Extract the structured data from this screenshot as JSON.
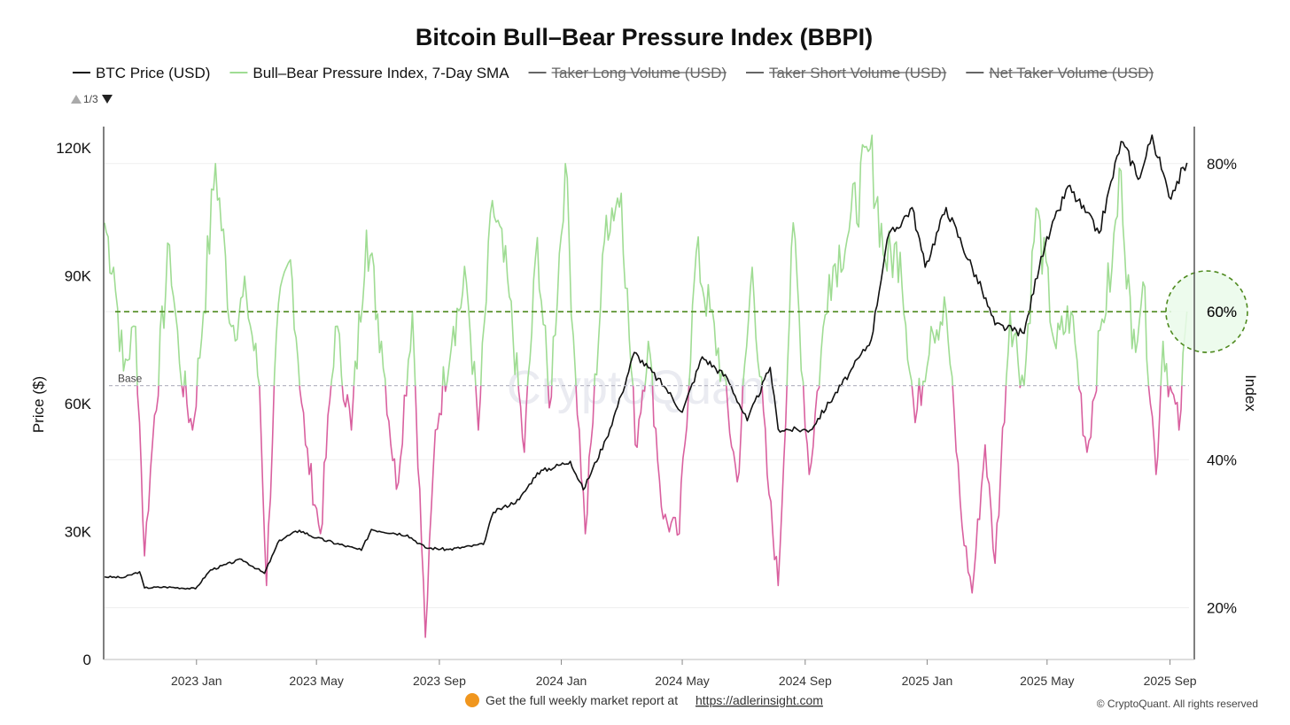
{
  "chart_data": {
    "type": "line",
    "title": "Bitcoin Bull–Bear Pressure Index (BBPI)",
    "legend": [
      {
        "label": "BTC Price (USD)",
        "color": "#111111",
        "active": true
      },
      {
        "label": "Bull–Bear Pressure Index, 7-Day SMA",
        "color": "#9fdc93",
        "active": true
      },
      {
        "label": "Taker Long Volume (USD)",
        "color": "#666666",
        "active": false
      },
      {
        "label": "Taker Short Volume (USD)",
        "color": "#666666",
        "active": false
      },
      {
        "label": "Net Taker Volume (USD)",
        "color": "#666666",
        "active": false
      }
    ],
    "legend_page": "1/3",
    "ylabel_left": "Price ($)",
    "ylabel_right": "Index",
    "y_left_range": [
      0,
      125000
    ],
    "y_left_ticks": [
      {
        "value": 0,
        "label": "0"
      },
      {
        "value": 30000,
        "label": "30K"
      },
      {
        "value": 60000,
        "label": "60K"
      },
      {
        "value": 90000,
        "label": "90K"
      },
      {
        "value": 120000,
        "label": "120K"
      }
    ],
    "y_right_range": [
      13,
      85
    ],
    "y_right_ticks": [
      {
        "value": 20,
        "label": "20%"
      },
      {
        "value": 40,
        "label": "40%"
      },
      {
        "value": 60,
        "label": "60%"
      },
      {
        "value": 80,
        "label": "80%"
      }
    ],
    "x_range": [
      "2022-10-01",
      "2025-09-20"
    ],
    "x_ticks": [
      {
        "date": "2023-01-01",
        "label": "2023 Jan"
      },
      {
        "date": "2023-05-01",
        "label": "2023 May"
      },
      {
        "date": "2023-09-01",
        "label": "2023 Sep"
      },
      {
        "date": "2024-01-01",
        "label": "2024 Jan"
      },
      {
        "date": "2024-05-01",
        "label": "2024 May"
      },
      {
        "date": "2024-09-01",
        "label": "2024 Sep"
      },
      {
        "date": "2025-01-01",
        "label": "2025 Jan"
      },
      {
        "date": "2025-05-01",
        "label": "2025 May"
      },
      {
        "date": "2025-09-01",
        "label": "2025 Sep"
      }
    ],
    "base_line": {
      "label": "Base",
      "value": 50
    },
    "threshold_line": {
      "value": 60,
      "label": "60%"
    },
    "colors": {
      "bull": "#9fdc93",
      "bear": "#d9609f",
      "price": "#111111",
      "threshold": "#4f8a1f"
    },
    "series": [
      {
        "name": "BTC Price (USD)",
        "axis": "left",
        "points": [
          [
            "2022-10-01",
            19400
          ],
          [
            "2022-10-20",
            19200
          ],
          [
            "2022-11-05",
            20600
          ],
          [
            "2022-11-10",
            16800
          ],
          [
            "2022-12-01",
            17000
          ],
          [
            "2022-12-31",
            16600
          ],
          [
            "2023-01-15",
            21000
          ],
          [
            "2023-02-15",
            23500
          ],
          [
            "2023-03-10",
            20200
          ],
          [
            "2023-03-25",
            28000
          ],
          [
            "2023-04-14",
            30300
          ],
          [
            "2023-05-01",
            28500
          ],
          [
            "2023-06-15",
            25600
          ],
          [
            "2023-06-25",
            30500
          ],
          [
            "2023-07-31",
            29200
          ],
          [
            "2023-08-18",
            26200
          ],
          [
            "2023-09-10",
            25800
          ],
          [
            "2023-10-15",
            27000
          ],
          [
            "2023-10-25",
            34500
          ],
          [
            "2023-11-20",
            37500
          ],
          [
            "2023-12-08",
            43800
          ],
          [
            "2024-01-10",
            46500
          ],
          [
            "2024-01-23",
            39800
          ],
          [
            "2024-02-15",
            51800
          ],
          [
            "2024-03-01",
            62000
          ],
          [
            "2024-03-14",
            72000
          ],
          [
            "2024-04-15",
            63500
          ],
          [
            "2024-05-01",
            58000
          ],
          [
            "2024-05-21",
            71000
          ],
          [
            "2024-06-15",
            66000
          ],
          [
            "2024-07-05",
            56000
          ],
          [
            "2024-07-28",
            68500
          ],
          [
            "2024-08-05",
            54000
          ],
          [
            "2024-09-06",
            53800
          ],
          [
            "2024-10-15",
            67000
          ],
          [
            "2024-11-06",
            75000
          ],
          [
            "2024-11-22",
            98500
          ],
          [
            "2024-12-17",
            106000
          ],
          [
            "2024-12-30",
            92000
          ],
          [
            "2025-01-20",
            106000
          ],
          [
            "2025-02-25",
            86500
          ],
          [
            "2025-03-10",
            78500
          ],
          [
            "2025-04-08",
            76500
          ],
          [
            "2025-04-25",
            94500
          ],
          [
            "2025-05-22",
            111000
          ],
          [
            "2025-06-22",
            100000
          ],
          [
            "2025-07-14",
            121500
          ],
          [
            "2025-08-02",
            113000
          ],
          [
            "2025-08-14",
            123000
          ],
          [
            "2025-08-31",
            108500
          ],
          [
            "2025-09-18",
            116500
          ]
        ]
      },
      {
        "name": "Bull–Bear Pressure Index, 7-Day SMA",
        "axis": "right",
        "points": [
          [
            "2022-10-01",
            72
          ],
          [
            "2022-10-10",
            66
          ],
          [
            "2022-10-20",
            52
          ],
          [
            "2022-11-01",
            58
          ],
          [
            "2022-11-05",
            45
          ],
          [
            "2022-11-10",
            27
          ],
          [
            "2022-11-20",
            46
          ],
          [
            "2022-12-05",
            69
          ],
          [
            "2022-12-15",
            53
          ],
          [
            "2022-12-28",
            44
          ],
          [
            "2023-01-08",
            60
          ],
          [
            "2023-01-20",
            80
          ],
          [
            "2023-02-05",
            58
          ],
          [
            "2023-02-20",
            62
          ],
          [
            "2023-03-05",
            50
          ],
          [
            "2023-03-12",
            23
          ],
          [
            "2023-03-22",
            57
          ],
          [
            "2023-04-05",
            67
          ],
          [
            "2023-04-20",
            42
          ],
          [
            "2023-05-05",
            30
          ],
          [
            "2023-05-20",
            58
          ],
          [
            "2023-06-05",
            44
          ],
          [
            "2023-06-20",
            71
          ],
          [
            "2023-07-05",
            56
          ],
          [
            "2023-07-20",
            36
          ],
          [
            "2023-08-05",
            60
          ],
          [
            "2023-08-18",
            16
          ],
          [
            "2023-08-28",
            44
          ],
          [
            "2023-09-15",
            58
          ],
          [
            "2023-09-28",
            64
          ],
          [
            "2023-10-10",
            44
          ],
          [
            "2023-10-24",
            75
          ],
          [
            "2023-11-10",
            62
          ],
          [
            "2023-11-25",
            41
          ],
          [
            "2023-12-08",
            70
          ],
          [
            "2023-12-20",
            47
          ],
          [
            "2024-01-05",
            80
          ],
          [
            "2024-01-15",
            52
          ],
          [
            "2024-01-25",
            30
          ],
          [
            "2024-02-15",
            73
          ],
          [
            "2024-03-01",
            76
          ],
          [
            "2024-03-15",
            42
          ],
          [
            "2024-03-28",
            56
          ],
          [
            "2024-04-12",
            32
          ],
          [
            "2024-04-28",
            30
          ],
          [
            "2024-05-15",
            68
          ],
          [
            "2024-06-10",
            52
          ],
          [
            "2024-06-25",
            37
          ],
          [
            "2024-07-10",
            66
          ],
          [
            "2024-07-25",
            38
          ],
          [
            "2024-08-05",
            23
          ],
          [
            "2024-08-20",
            72
          ],
          [
            "2024-09-05",
            38
          ],
          [
            "2024-09-25",
            65
          ],
          [
            "2024-10-15",
            71
          ],
          [
            "2024-11-05",
            82
          ],
          [
            "2024-11-20",
            67
          ],
          [
            "2024-12-05",
            68
          ],
          [
            "2024-12-20",
            45
          ],
          [
            "2025-01-05",
            58
          ],
          [
            "2025-01-20",
            60
          ],
          [
            "2025-02-05",
            31
          ],
          [
            "2025-02-15",
            22
          ],
          [
            "2025-02-28",
            42
          ],
          [
            "2025-03-10",
            26
          ],
          [
            "2025-03-25",
            60
          ],
          [
            "2025-04-08",
            50
          ],
          [
            "2025-04-20",
            74
          ],
          [
            "2025-05-10",
            55
          ],
          [
            "2025-05-25",
            60
          ],
          [
            "2025-06-10",
            41
          ],
          [
            "2025-06-25",
            59
          ],
          [
            "2025-07-05",
            66
          ],
          [
            "2025-07-14",
            79
          ],
          [
            "2025-07-25",
            55
          ],
          [
            "2025-08-05",
            64
          ],
          [
            "2025-08-18",
            38
          ],
          [
            "2025-08-25",
            56
          ],
          [
            "2025-09-01",
            50
          ],
          [
            "2025-09-10",
            44
          ],
          [
            "2025-09-18",
            60
          ]
        ]
      }
    ]
  },
  "watermark": "CryptoQuant",
  "footer": {
    "text": "Get the full weekly market report at",
    "link": "https://adlerinsight.com",
    "copyright": "© CryptoQuant. All rights reserved"
  }
}
